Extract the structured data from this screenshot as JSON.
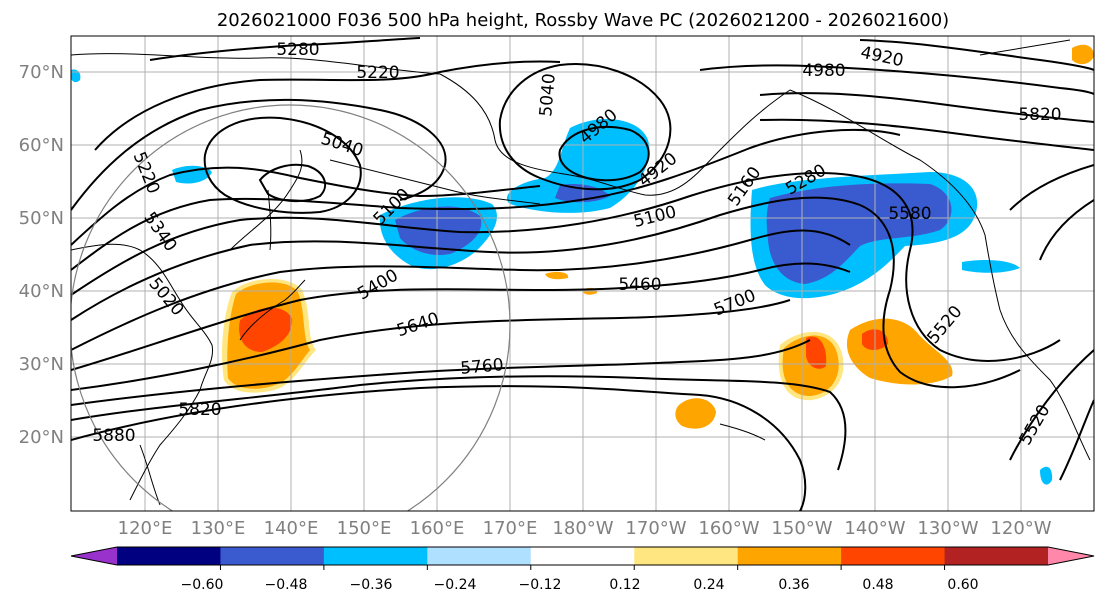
{
  "title": "2026021000 F036 500 hPa height, Rossby Wave PC (2026021200 - 2026021600)",
  "lat_labels": [
    "20°N",
    "30°N",
    "40°N",
    "50°N",
    "60°N",
    "70°N"
  ],
  "lon_labels": [
    "120°E",
    "130°E",
    "140°E",
    "150°E",
    "160°E",
    "170°E",
    "180°W",
    "170°W",
    "160°W",
    "150°W",
    "140°W",
    "130°W",
    "120°W"
  ],
  "contour_labels": [
    "5280",
    "5220",
    "5040",
    "4980",
    "4920",
    "4980",
    "5040",
    "4920",
    "5160",
    "5280",
    "5100",
    "5100",
    "5220",
    "5340",
    "5400",
    "5460",
    "5580",
    "5520",
    "5700",
    "5640",
    "5760",
    "5820",
    "5880",
    "5520",
    "5820",
    "5020"
  ],
  "colorbar": {
    "ticks": [
      "−0.60",
      "−0.48",
      "−0.36",
      "−0.24",
      "−0.12",
      "0.12",
      "0.24",
      "0.36",
      "0.48",
      "0.60"
    ],
    "colors": [
      "#9932CC",
      "#000080",
      "#3A5BD0",
      "#00BFFF",
      "#B0E0FF",
      "#FFFFFF",
      "#FFE680",
      "#FFA500",
      "#FF4500",
      "#B22222",
      "#FF88AA"
    ]
  },
  "palette": {
    "lightblue": "#00BFFF",
    "blue": "#3A5BD0",
    "orange": "#FFA500",
    "red": "#FF4500",
    "yellow": "#FFE680"
  }
}
